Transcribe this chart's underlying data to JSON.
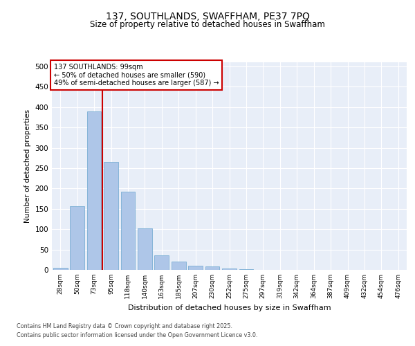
{
  "title_line1": "137, SOUTHLANDS, SWAFFHAM, PE37 7PQ",
  "title_line2": "Size of property relative to detached houses in Swaffham",
  "xlabel": "Distribution of detached houses by size in Swaffham",
  "ylabel": "Number of detached properties",
  "categories": [
    "28sqm",
    "50sqm",
    "73sqm",
    "95sqm",
    "118sqm",
    "140sqm",
    "163sqm",
    "185sqm",
    "207sqm",
    "230sqm",
    "252sqm",
    "275sqm",
    "297sqm",
    "319sqm",
    "342sqm",
    "364sqm",
    "387sqm",
    "409sqm",
    "432sqm",
    "454sqm",
    "476sqm"
  ],
  "values": [
    5,
    157,
    390,
    265,
    192,
    102,
    35,
    20,
    11,
    8,
    3,
    1,
    0,
    0,
    0,
    0,
    0,
    0,
    0,
    0,
    0
  ],
  "bar_color": "#aec6e8",
  "bar_edge_color": "#7aafd4",
  "vline_index": 3,
  "vline_color": "#cc0000",
  "annotation_text": "137 SOUTHLANDS: 99sqm\n← 50% of detached houses are smaller (590)\n49% of semi-detached houses are larger (587) →",
  "annotation_box_color": "#ffffff",
  "annotation_box_edge_color": "#cc0000",
  "ylim": [
    0,
    510
  ],
  "yticks": [
    0,
    50,
    100,
    150,
    200,
    250,
    300,
    350,
    400,
    450,
    500
  ],
  "background_color": "#e8eef8",
  "grid_color": "#ffffff",
  "footer_line1": "Contains HM Land Registry data © Crown copyright and database right 2025.",
  "footer_line2": "Contains public sector information licensed under the Open Government Licence v3.0."
}
